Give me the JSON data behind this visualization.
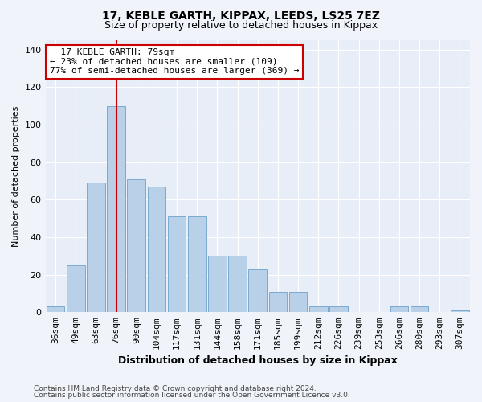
{
  "title1": "17, KEBLE GARTH, KIPPAX, LEEDS, LS25 7EZ",
  "title2": "Size of property relative to detached houses in Kippax",
  "xlabel": "Distribution of detached houses by size in Kippax",
  "ylabel": "Number of detached properties",
  "categories": [
    "36sqm",
    "49sqm",
    "63sqm",
    "76sqm",
    "90sqm",
    "104sqm",
    "117sqm",
    "131sqm",
    "144sqm",
    "158sqm",
    "171sqm",
    "185sqm",
    "199sqm",
    "212sqm",
    "226sqm",
    "239sqm",
    "253sqm",
    "266sqm",
    "280sqm",
    "293sqm",
    "307sqm"
  ],
  "values": [
    3,
    25,
    69,
    110,
    71,
    67,
    51,
    51,
    30,
    30,
    23,
    11,
    11,
    3,
    3,
    0,
    0,
    3,
    3,
    0,
    1
  ],
  "bar_color": "#b8d0e8",
  "bar_edge_color": "#7aaace",
  "bar_width": 0.9,
  "vline_color": "#cc0000",
  "vline_x": 3.0,
  "annotation_line1": "  17 KEBLE GARTH: 79sqm",
  "annotation_line2": "← 23% of detached houses are smaller (109)",
  "annotation_line3": "77% of semi-detached houses are larger (369) →",
  "annotation_box_color": "#ffffff",
  "annotation_box_edge": "#cc0000",
  "ylim": [
    0,
    145
  ],
  "yticks": [
    0,
    20,
    40,
    60,
    80,
    100,
    120,
    140
  ],
  "footer1": "Contains HM Land Registry data © Crown copyright and database right 2024.",
  "footer2": "Contains public sector information licensed under the Open Government Licence v3.0.",
  "bg_color": "#f0f4fa",
  "plot_bg_color": "#e8eef8",
  "title1_fontsize": 10,
  "title2_fontsize": 9,
  "ylabel_fontsize": 8,
  "xlabel_fontsize": 9,
  "tick_fontsize": 8,
  "annot_fontsize": 8,
  "footer_fontsize": 6.5
}
